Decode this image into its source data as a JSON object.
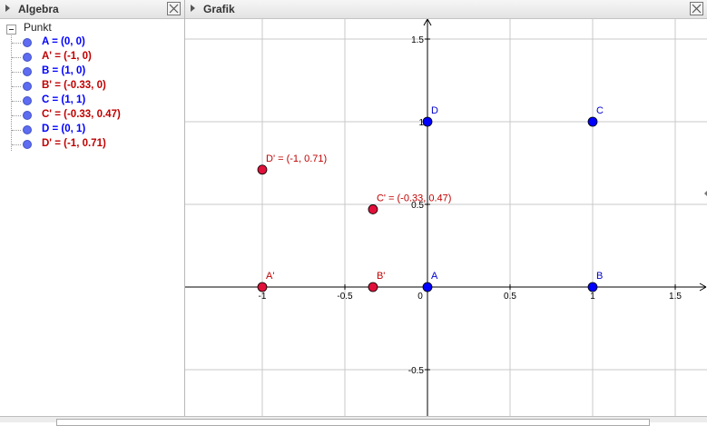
{
  "algebra": {
    "title": "Algebra",
    "category": "Punkt",
    "points": [
      {
        "label": "A = (0, 0)",
        "color": "blue"
      },
      {
        "label": "A' = (-1, 0)",
        "color": "red"
      },
      {
        "label": "B = (1, 0)",
        "color": "blue"
      },
      {
        "label": "B' = (-0.33, 0)",
        "color": "red"
      },
      {
        "label": "C = (1, 1)",
        "color": "blue"
      },
      {
        "label": "C' = (-0.33, 0.47)",
        "color": "red"
      },
      {
        "label": "D = (0, 1)",
        "color": "blue"
      },
      {
        "label": "D' = (-1, 0.71)",
        "color": "red"
      }
    ]
  },
  "graphics": {
    "title": "Grafik",
    "x_ticks": [
      "-1",
      "-0.5",
      "0",
      "0.5",
      "1",
      "1.5"
    ],
    "y_ticks": [
      "1.5",
      "1",
      "0.5",
      "-0.5"
    ],
    "points": [
      {
        "name": "A",
        "x": 0,
        "y": 0,
        "label": "A",
        "color": "blue"
      },
      {
        "name": "B",
        "x": 1,
        "y": 0,
        "label": "B",
        "color": "blue"
      },
      {
        "name": "C",
        "x": 1,
        "y": 1,
        "label": "C",
        "color": "blue"
      },
      {
        "name": "D",
        "x": 0,
        "y": 1,
        "label": "D",
        "color": "blue"
      },
      {
        "name": "A'",
        "x": -1,
        "y": 0,
        "label": "A'",
        "color": "red"
      },
      {
        "name": "B'",
        "x": -0.33,
        "y": 0,
        "label": "B'",
        "color": "red"
      },
      {
        "name": "C'",
        "x": -0.33,
        "y": 0.47,
        "label": "C' = (-0.33, 0.47)",
        "color": "red"
      },
      {
        "name": "D'",
        "x": -1,
        "y": 0.71,
        "label": "D' = (-1, 0.71)",
        "color": "red"
      }
    ]
  },
  "colors": {
    "blue_point": "#0000ff",
    "red_point": "#e0103a",
    "algebra_dot": "#5d6cf0"
  }
}
